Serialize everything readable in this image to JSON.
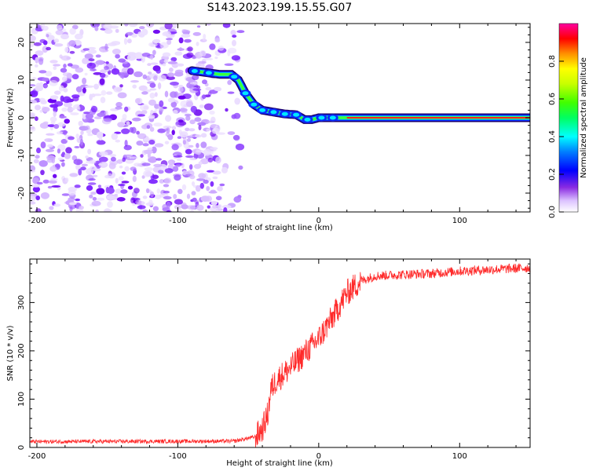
{
  "figure": {
    "title": "S143.2023.199.15.55.G07"
  },
  "chart_data": [
    {
      "type": "heatmap",
      "xlabel": "Height of straight line (km)",
      "ylabel": "Frequency (Hz)",
      "xlim": [
        -205,
        150
      ],
      "ylim": [
        -25,
        25
      ],
      "x_ticks": [
        -200,
        -100,
        0,
        100
      ],
      "y_ticks": [
        -20,
        -10,
        0,
        10,
        20
      ],
      "track": {
        "x": [
          -90,
          -80,
          -70,
          -62,
          -57,
          -52,
          -46,
          -40,
          -32,
          -24,
          -16,
          -10,
          -5,
          0,
          10,
          20,
          40,
          70,
          100,
          150
        ],
        "freq": [
          12.5,
          12.0,
          11.5,
          11.5,
          10.0,
          6.5,
          3.5,
          2.0,
          1.5,
          1.0,
          0.8,
          -0.5,
          -0.5,
          0,
          0,
          0,
          0,
          0,
          0,
          0
        ]
      },
      "noise_region_xlim": [
        -205,
        -55
      ],
      "colorbar": {
        "label": "Normalized spectral amplitude",
        "ticks": [
          0.0,
          0.2,
          0.4,
          0.6,
          0.8
        ],
        "range": [
          0,
          1
        ]
      }
    },
    {
      "type": "line",
      "xlabel": "Height of straight line (km)",
      "ylabel": "SNR (10 * v/v)",
      "xlim": [
        -205,
        150
      ],
      "ylim": [
        0,
        390
      ],
      "x_ticks": [
        -200,
        -100,
        0,
        100
      ],
      "y_ticks": [
        0,
        100,
        200,
        300
      ],
      "series": [
        {
          "color": "#ff2a2a",
          "x": [
            -205,
            -60,
            -45,
            -40,
            -36,
            -34,
            -30,
            -20,
            -10,
            0,
            10,
            20,
            30,
            40,
            60,
            80,
            100,
            120,
            150
          ],
          "y": [
            12,
            13,
            22,
            38,
            70,
            120,
            140,
            165,
            195,
            225,
            270,
            320,
            345,
            355,
            358,
            360,
            365,
            368,
            372
          ]
        }
      ]
    }
  ]
}
